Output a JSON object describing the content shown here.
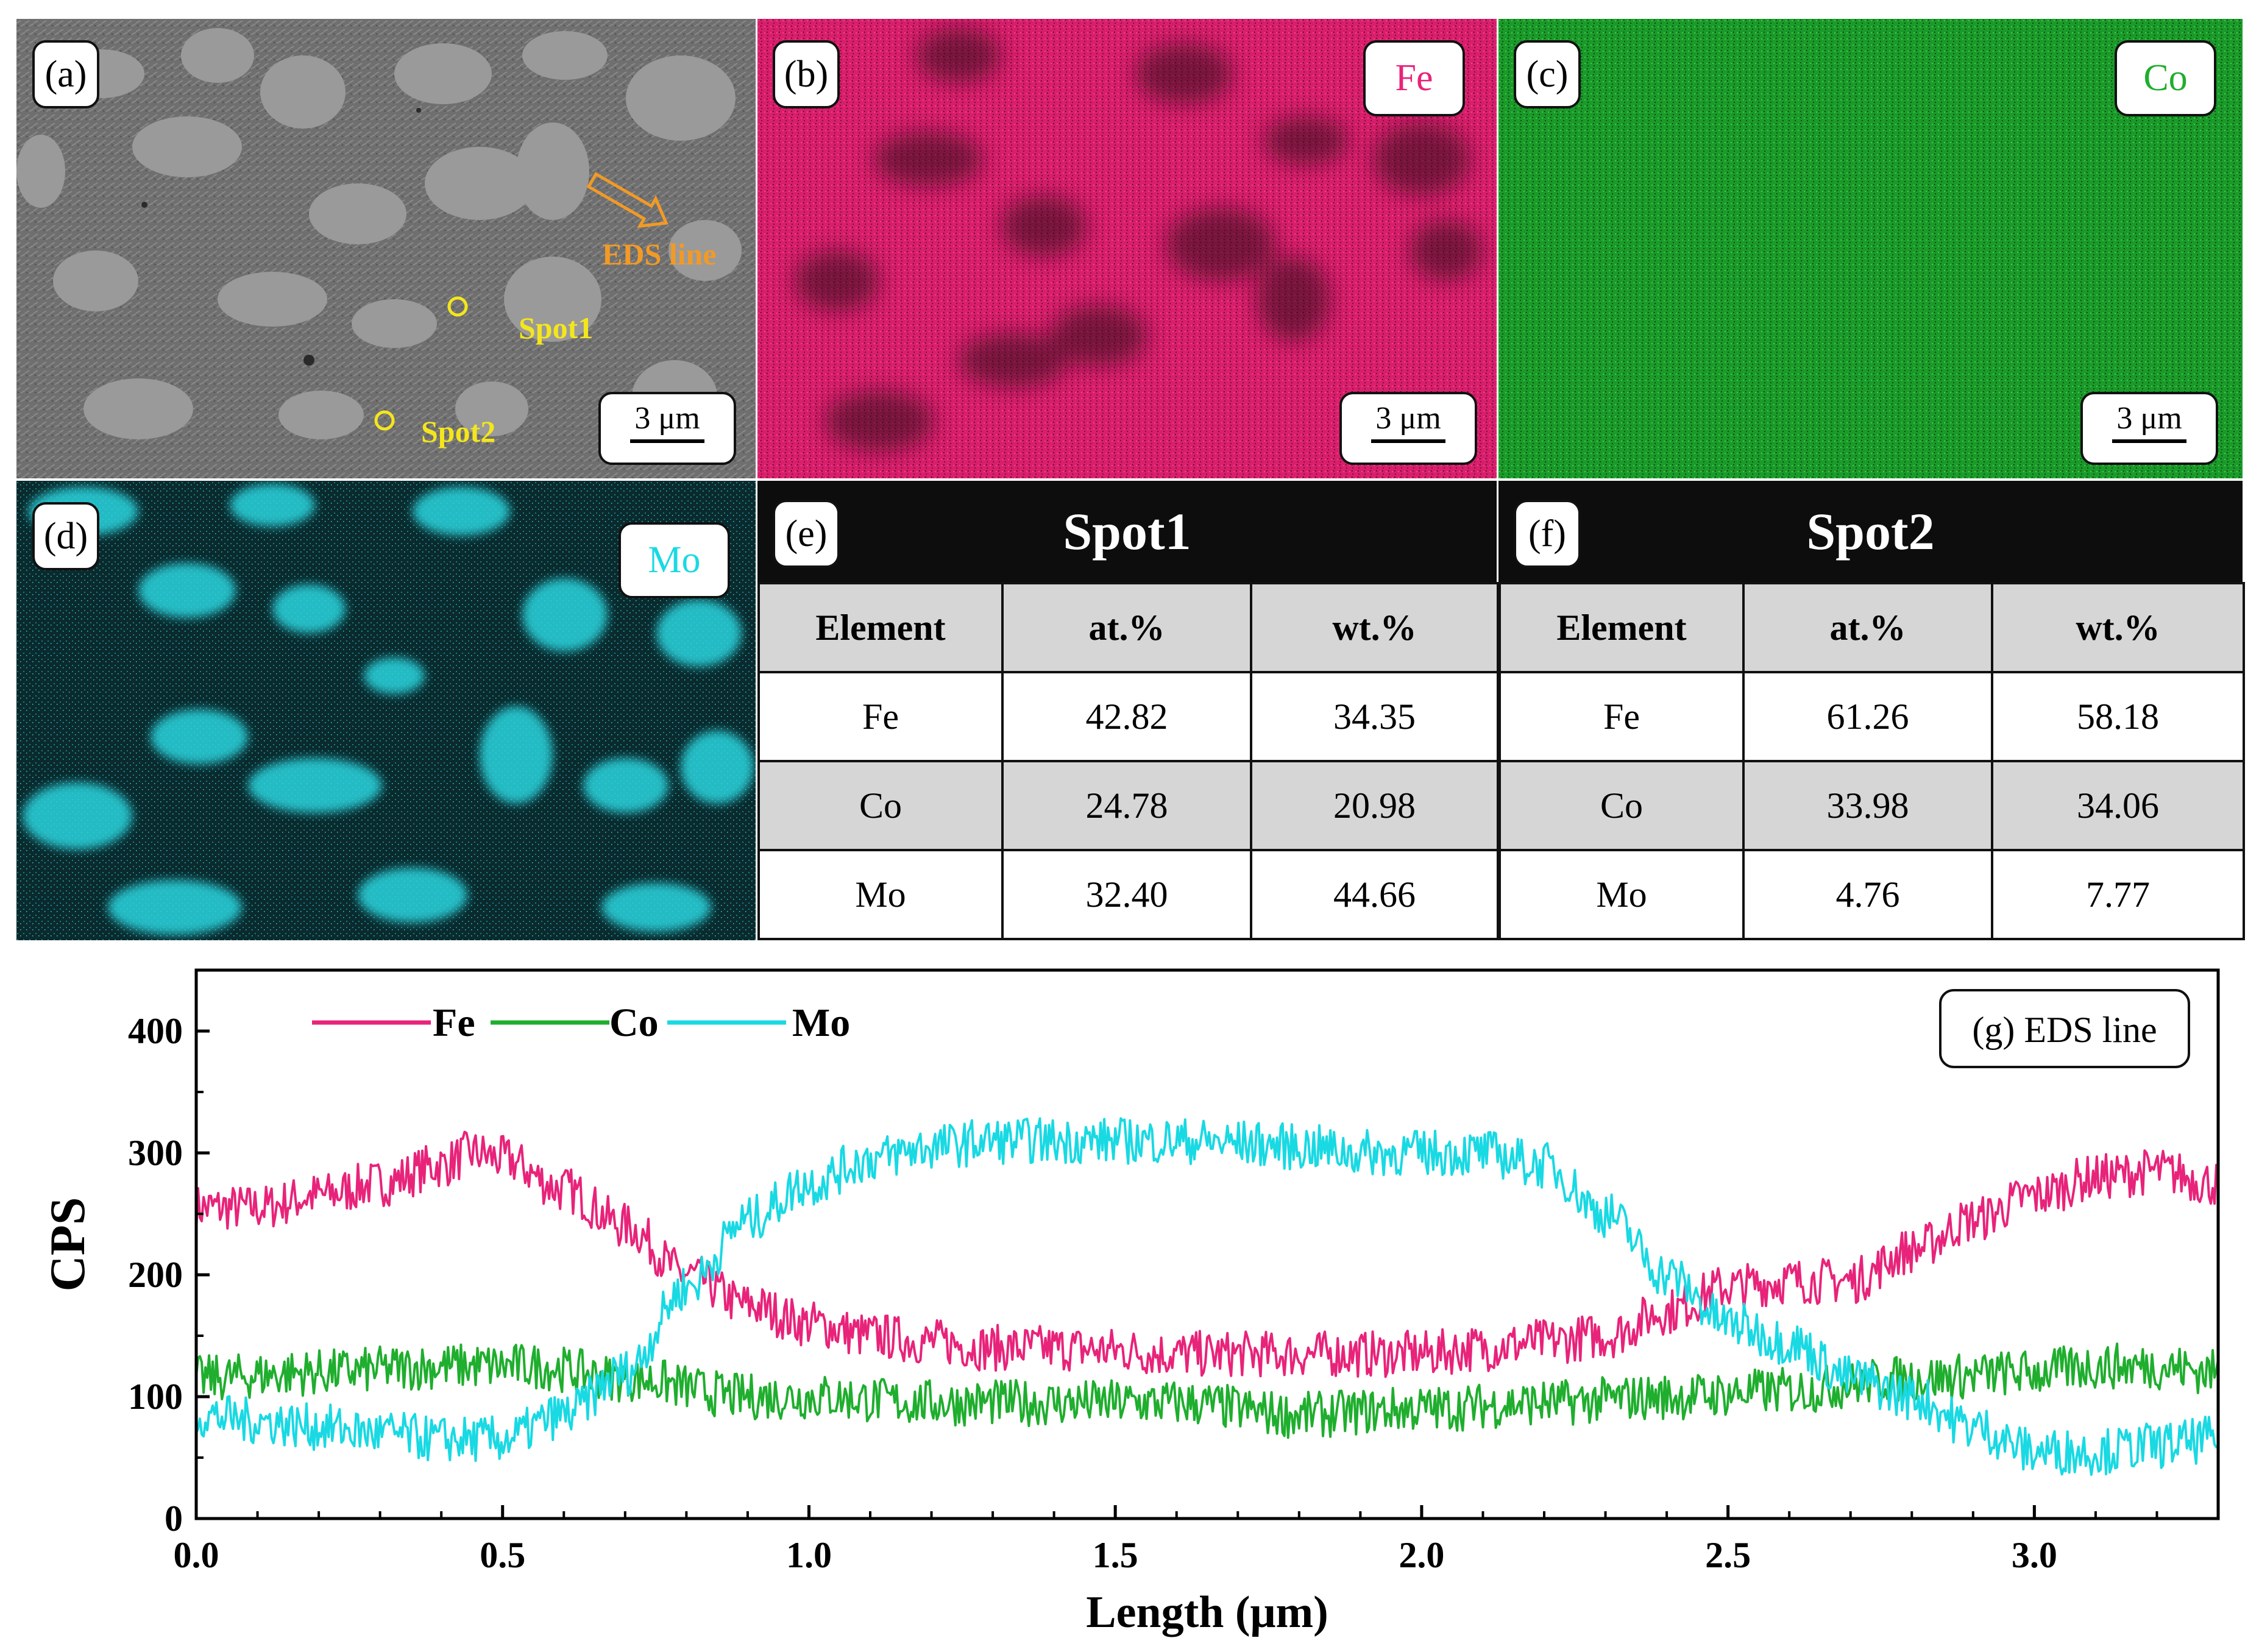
{
  "panels": {
    "a": {
      "label": "(a)",
      "scale": "3 μm",
      "spot1": "Spot1",
      "spot2": "Spot2",
      "eds_line": "EDS line"
    },
    "b": {
      "label": "(b)",
      "element": "Fe",
      "scale": "3 μm",
      "color": "#e8237a"
    },
    "c": {
      "label": "(c)",
      "element": "Co",
      "scale": "3 μm",
      "color": "#1fae2e"
    },
    "d": {
      "label": "(d)",
      "element": "Mo",
      "color": "#19d9e3"
    }
  },
  "tables": {
    "e": {
      "label": "(e)",
      "title": "Spot1",
      "headers": [
        "Element",
        "at.%",
        "wt.%"
      ],
      "rows": [
        [
          "Fe",
          "42.82",
          "34.35"
        ],
        [
          "Co",
          "24.78",
          "20.98"
        ],
        [
          "Mo",
          "32.40",
          "44.66"
        ]
      ]
    },
    "f": {
      "label": "(f)",
      "title": "Spot2",
      "headers": [
        "Element",
        "at.%",
        "wt.%"
      ],
      "rows": [
        [
          "Fe",
          "61.26",
          "58.18"
        ],
        [
          "Co",
          "33.98",
          "34.06"
        ],
        [
          "Mo",
          "4.76",
          "7.77"
        ]
      ]
    }
  },
  "chart_data": {
    "type": "line",
    "title": "(g) EDS line",
    "xlabel": "Length (μm)",
    "ylabel": "CPS",
    "xlim": [
      0.0,
      3.3
    ],
    "ylim": [
      0,
      450
    ],
    "xticks": [
      "0.0",
      "0.5",
      "1.0",
      "1.5",
      "2.0",
      "2.5",
      "3.0"
    ],
    "yticks": [
      "0",
      "100",
      "200",
      "300",
      "400"
    ],
    "legend": {
      "placement": "top-left",
      "entries": [
        "Fe",
        "Co",
        "Mo"
      ]
    },
    "series": [
      {
        "name": "Fe",
        "color": "#e8237a",
        "x": [
          0.0,
          0.1,
          0.2,
          0.3,
          0.4,
          0.45,
          0.5,
          0.6,
          0.7,
          0.8,
          0.9,
          1.0,
          1.1,
          1.2,
          1.3,
          1.4,
          1.5,
          1.6,
          1.7,
          1.8,
          1.9,
          2.0,
          2.1,
          2.2,
          2.3,
          2.4,
          2.5,
          2.6,
          2.7,
          2.8,
          2.9,
          3.0,
          3.1,
          3.2,
          3.3
        ],
        "y": [
          255,
          255,
          265,
          275,
          290,
          300,
          295,
          270,
          240,
          200,
          175,
          160,
          150,
          145,
          140,
          140,
          138,
          135,
          135,
          135,
          135,
          135,
          140,
          145,
          150,
          170,
          190,
          195,
          195,
          220,
          245,
          265,
          280,
          285,
          275
        ]
      },
      {
        "name": "Co",
        "color": "#1fae2e",
        "x": [
          0.0,
          0.2,
          0.4,
          0.55,
          0.7,
          0.9,
          1.0,
          1.2,
          1.4,
          1.6,
          1.8,
          2.0,
          2.2,
          2.4,
          2.6,
          2.8,
          3.0,
          3.1,
          3.2,
          3.3
        ],
        "y": [
          115,
          120,
          125,
          125,
          115,
          100,
          100,
          95,
          95,
          95,
          85,
          90,
          95,
          100,
          105,
          115,
          120,
          125,
          125,
          120
        ]
      },
      {
        "name": "Mo",
        "color": "#19d9e3",
        "x": [
          0.0,
          0.1,
          0.2,
          0.3,
          0.4,
          0.5,
          0.6,
          0.7,
          0.8,
          0.9,
          1.0,
          1.1,
          1.2,
          1.3,
          1.4,
          1.5,
          1.6,
          1.7,
          1.8,
          1.9,
          2.0,
          2.1,
          2.2,
          2.3,
          2.4,
          2.5,
          2.6,
          2.7,
          2.8,
          2.9,
          3.0,
          3.1,
          3.2,
          3.3
        ],
        "y": [
          85,
          80,
          75,
          70,
          65,
          65,
          85,
          120,
          190,
          245,
          275,
          295,
          305,
          310,
          310,
          310,
          310,
          308,
          305,
          300,
          300,
          300,
          290,
          250,
          200,
          160,
          145,
          115,
          100,
          75,
          55,
          55,
          60,
          65
        ]
      }
    ]
  }
}
